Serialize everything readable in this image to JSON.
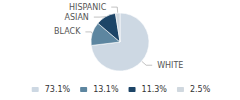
{
  "chart_data": {
    "type": "pie",
    "categories": [
      "WHITE",
      "BLACK",
      "ASIAN",
      "HISPANIC"
    ],
    "values": [
      73.1,
      13.1,
      11.3,
      2.5
    ],
    "value_labels": [
      "73.1%",
      "13.1%",
      "11.3%",
      "2.5%"
    ],
    "colors": [
      "#cdd8e3",
      "#5d86a0",
      "#1d4567",
      "#d0d8df"
    ],
    "legend": "bottom"
  }
}
